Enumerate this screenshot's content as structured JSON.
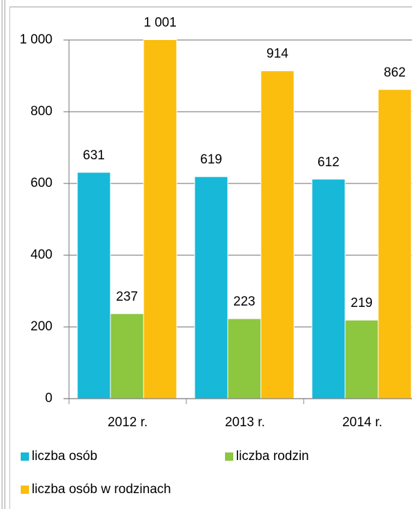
{
  "chart_data": {
    "type": "bar",
    "categories": [
      "2012 r.",
      "2013 r.",
      "2014 r."
    ],
    "series": [
      {
        "name": "liczba osób",
        "color": "#17b8d8",
        "values": [
          631,
          619,
          612
        ]
      },
      {
        "name": "liczba rodzin",
        "color": "#8dc63f",
        "values": [
          237,
          223,
          219
        ]
      },
      {
        "name": "liczba osób w rodzinach",
        "color": "#fbbd0e",
        "values": [
          1001,
          914,
          862
        ],
        "value_labels": [
          "1 001",
          "914",
          "862"
        ]
      }
    ],
    "ylim": [
      0,
      1000
    ],
    "yticks": [
      0,
      200,
      400,
      600,
      800,
      {
        "value": 1000,
        "label": "1 000"
      }
    ],
    "grid": true,
    "legend": "bottom"
  }
}
